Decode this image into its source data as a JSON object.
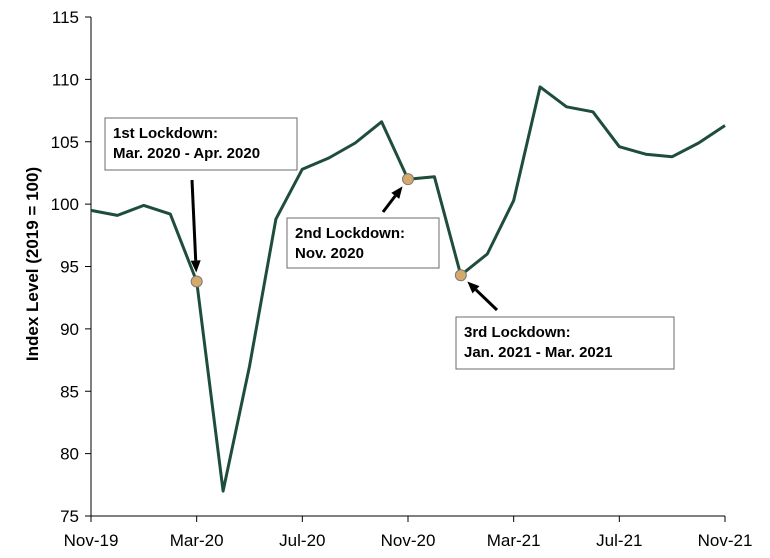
{
  "chart_data": {
    "type": "line",
    "ylabel": "Index Level (2019 = 100)",
    "ylim": [
      75,
      115
    ],
    "yticks": [
      75,
      80,
      85,
      90,
      95,
      100,
      105,
      110,
      115
    ],
    "xtick_labels": [
      "Nov-19",
      "Mar-20",
      "Jul-20",
      "Nov-20",
      "Mar-21",
      "Jul-21",
      "Nov-21"
    ],
    "x": [
      "Nov-19",
      "Dec-19",
      "Jan-20",
      "Feb-20",
      "Mar-20",
      "Apr-20",
      "May-20",
      "Jun-20",
      "Jul-20",
      "Aug-20",
      "Sep-20",
      "Oct-20",
      "Nov-20",
      "Dec-20",
      "Jan-21",
      "Feb-21",
      "Mar-21",
      "Apr-21",
      "May-21",
      "Jun-21",
      "Jul-21",
      "Aug-21",
      "Sep-21",
      "Oct-21",
      "Nov-21"
    ],
    "series": [
      {
        "values": [
          99.5,
          99.1,
          99.9,
          99.2,
          93.8,
          77.0,
          87.0,
          98.8,
          102.8,
          103.7,
          104.9,
          106.6,
          102.0,
          102.2,
          94.3,
          96.0,
          100.3,
          109.4,
          107.8,
          107.4,
          104.6,
          104.0,
          103.8,
          104.9,
          106.3
        ],
        "color": "#1e4d3a"
      }
    ],
    "annotations": [
      {
        "lines": [
          "1st Lockdown:",
          "Mar. 2020 - Apr. 2020"
        ],
        "point_x": "Mar-20",
        "point_y": 93.8
      },
      {
        "lines": [
          "2nd Lockdown:",
          "Nov. 2020"
        ],
        "point_x": "Nov-20",
        "point_y": 102.0
      },
      {
        "lines": [
          "3rd Lockdown:",
          "Jan. 2021 - Mar. 2021"
        ],
        "point_x": "Jan-21",
        "point_y": 94.3
      }
    ],
    "marker_color": "#d4a96a",
    "grid": false,
    "legend": "none"
  }
}
